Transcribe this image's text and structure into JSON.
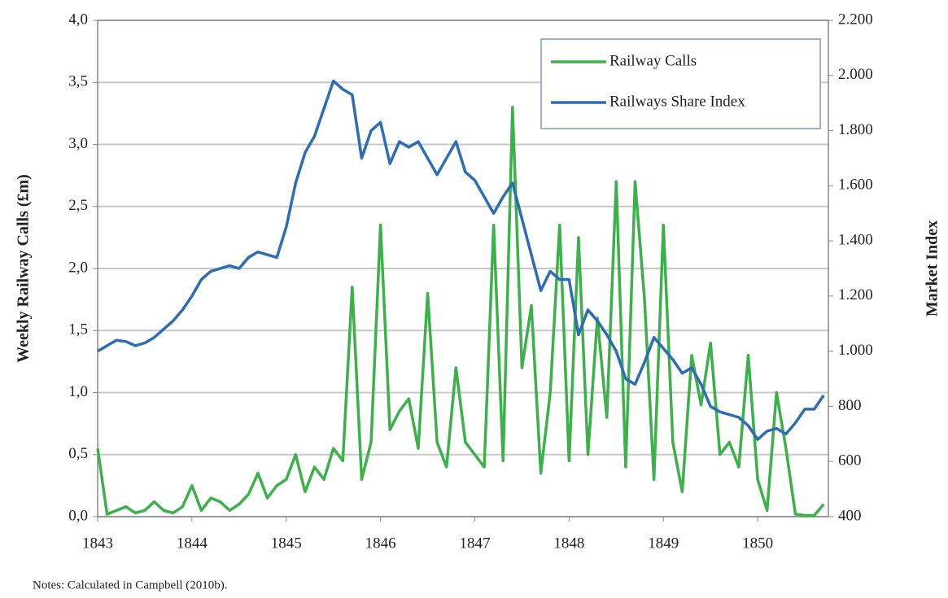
{
  "chart_data": {
    "type": "line",
    "ylabel": "Weekly Railway Calls (£m)",
    "y2label": "Market Index",
    "note": "Notes: Calculated in Campbell (2010b).",
    "legend": "upper right",
    "grid": true,
    "xlim": [
      1843,
      1850.75
    ],
    "xticks": [
      1843,
      1844,
      1845,
      1846,
      1847,
      1848,
      1849,
      1850
    ],
    "ylim": [
      0,
      4
    ],
    "yticks": [
      {
        "value": 0,
        "label": "0,0"
      },
      {
        "value": 0.5,
        "label": "0,5"
      },
      {
        "value": 1,
        "label": "1,0"
      },
      {
        "value": 1.5,
        "label": "1,5"
      },
      {
        "value": 2,
        "label": "2,0"
      },
      {
        "value": 2.5,
        "label": "2,5"
      },
      {
        "value": 3,
        "label": "3,0"
      },
      {
        "value": 3.5,
        "label": "3,5"
      },
      {
        "value": 4,
        "label": "4,0"
      }
    ],
    "y2lim": [
      400,
      2200
    ],
    "y2ticks": [
      400,
      600,
      800,
      {
        "value": 1000,
        "label": "1.000"
      },
      {
        "value": 1200,
        "label": "1.200"
      },
      {
        "value": 1400,
        "label": "1.400"
      },
      {
        "value": 1600,
        "label": "1.600"
      },
      {
        "value": 1800,
        "label": "1.800"
      },
      {
        "value": 2000,
        "label": "2.000"
      },
      {
        "value": 2200,
        "label": "2.200"
      }
    ],
    "x": [
      1843.0,
      1843.1,
      1843.2,
      1843.3,
      1843.4,
      1843.5,
      1843.6,
      1843.7,
      1843.8,
      1843.9,
      1844.0,
      1844.1,
      1844.2,
      1844.3,
      1844.4,
      1844.5,
      1844.6,
      1844.7,
      1844.8,
      1844.9,
      1845.0,
      1845.1,
      1845.2,
      1845.3,
      1845.4,
      1845.5,
      1845.6,
      1845.7,
      1845.8,
      1845.9,
      1846.0,
      1846.1,
      1846.2,
      1846.3,
      1846.4,
      1846.5,
      1846.6,
      1846.7,
      1846.8,
      1846.9,
      1847.0,
      1847.1,
      1847.2,
      1847.3,
      1847.4,
      1847.5,
      1847.6,
      1847.7,
      1847.8,
      1847.9,
      1848.0,
      1848.1,
      1848.2,
      1848.3,
      1848.4,
      1848.5,
      1848.6,
      1848.7,
      1848.8,
      1848.9,
      1849.0,
      1849.1,
      1849.2,
      1849.3,
      1849.4,
      1849.5,
      1849.6,
      1849.7,
      1849.8,
      1849.9,
      1850.0,
      1850.1,
      1850.2,
      1850.3,
      1850.4,
      1850.5,
      1850.6,
      1850.7
    ],
    "series": [
      {
        "name": "Railway Calls",
        "color": "#3cb04a",
        "axis": "y",
        "values": [
          0.55,
          0.02,
          0.05,
          0.08,
          0.03,
          0.05,
          0.12,
          0.05,
          0.03,
          0.08,
          0.25,
          0.05,
          0.15,
          0.12,
          0.05,
          0.1,
          0.18,
          0.35,
          0.15,
          0.25,
          0.3,
          0.5,
          0.2,
          0.4,
          0.3,
          0.55,
          0.45,
          1.85,
          0.3,
          0.6,
          2.35,
          0.7,
          0.85,
          0.95,
          0.55,
          1.8,
          0.6,
          0.4,
          1.2,
          0.6,
          0.5,
          0.4,
          2.35,
          0.45,
          3.3,
          1.2,
          1.7,
          0.35,
          1.0,
          2.35,
          0.45,
          2.25,
          0.5,
          1.6,
          0.8,
          2.7,
          0.4,
          2.7,
          1.75,
          0.3,
          2.35,
          0.6,
          0.2,
          1.3,
          0.9,
          1.4,
          0.5,
          0.6,
          0.4,
          1.3,
          0.3,
          0.05,
          1.0,
          0.55,
          0.02,
          0.01,
          0.01,
          0.1
        ]
      },
      {
        "name": "Railways Share Index",
        "color": "#2e6db4",
        "axis": "y2",
        "values": [
          1000,
          1020,
          1040,
          1035,
          1020,
          1030,
          1050,
          1080,
          1110,
          1150,
          1200,
          1260,
          1290,
          1300,
          1310,
          1300,
          1340,
          1360,
          1350,
          1340,
          1450,
          1610,
          1720,
          1780,
          1880,
          1980,
          1950,
          1930,
          1700,
          1800,
          1830,
          1680,
          1760,
          1740,
          1760,
          1700,
          1640,
          1700,
          1760,
          1650,
          1620,
          1560,
          1500,
          1560,
          1610,
          1480,
          1350,
          1220,
          1290,
          1260,
          1260,
          1060,
          1150,
          1110,
          1060,
          1000,
          900,
          880,
          960,
          1050,
          1010,
          970,
          920,
          940,
          880,
          800,
          780,
          770,
          760,
          730,
          680,
          710,
          720,
          700,
          740,
          790,
          790,
          840
        ]
      }
    ]
  }
}
